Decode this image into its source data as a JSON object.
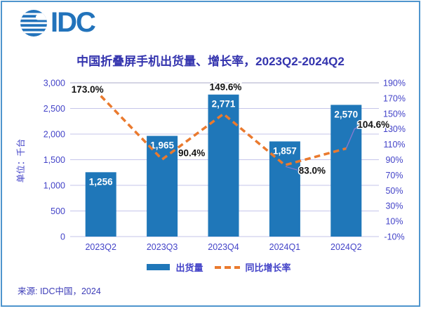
{
  "logo": {
    "text": "IDC",
    "color": "#2273BB"
  },
  "title": "中国折叠屏手机出货量、增长率，2023Q2-2024Q2",
  "source": "来源: IDC中国，2024",
  "chart_data": {
    "type": "bar+line-combo",
    "categories": [
      "2023Q2",
      "2023Q3",
      "2023Q4",
      "2024Q1",
      "2024Q2"
    ],
    "series": [
      {
        "name": "出货量",
        "type": "bar",
        "axis": "left",
        "color": "#1F77B9",
        "values": [
          1256,
          1965,
          2771,
          1857,
          2570
        ],
        "labels": [
          "1,256",
          "1,965",
          "2,771",
          "1,857",
          "2,570"
        ]
      },
      {
        "name": "同比增长率",
        "type": "dashed-line",
        "axis": "right",
        "color": "#EA7A2E",
        "values": [
          173.0,
          90.4,
          149.6,
          83.0,
          104.6
        ],
        "labels": [
          "173.0%",
          "90.4%",
          "149.6%",
          "83.0%",
          "104.6%"
        ]
      }
    ],
    "left_axis": {
      "title": "单位：千台",
      "min": 0,
      "max": 3000,
      "step": 500,
      "tick_labels": [
        "3,000",
        "2,500",
        "2,000",
        "1,500",
        "1,000",
        "500",
        "0"
      ]
    },
    "right_axis": {
      "min": -10,
      "max": 190,
      "step": 20,
      "tick_labels": [
        "190%",
        "170%",
        "150%",
        "130%",
        "110%",
        "90%",
        "70%",
        "50%",
        "30%",
        "10%",
        "-10%"
      ]
    },
    "legend": [
      {
        "label": "出货量",
        "swatch": "bar"
      },
      {
        "label": "同比增长率",
        "swatch": "dashed-line"
      }
    ],
    "grid": "horizontal",
    "legend_position": "bottom"
  },
  "colors": {
    "bar": "#1F77B9",
    "line": "#EA7A2E",
    "axis_text": "#4343C8",
    "title_text": "#3434AE",
    "growth_label": "#111111",
    "bar_label": "#FFFFFF",
    "gridline": "#C5C5EA",
    "gridline_top": "#A9A9C9",
    "leader_line": "#8A7AD0",
    "border": "#4E95CD"
  }
}
